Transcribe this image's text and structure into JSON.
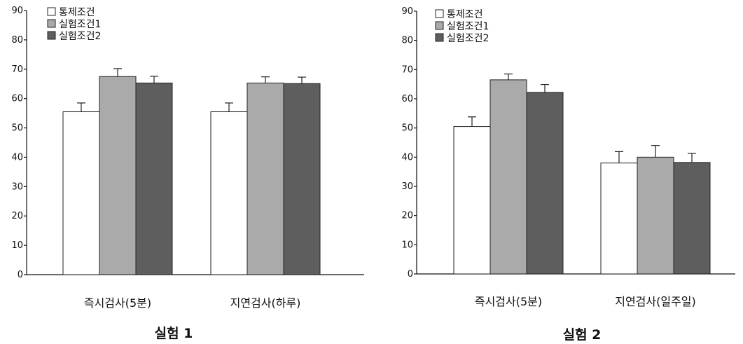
{
  "chart_data": [
    {
      "type": "bar",
      "caption": "실험 1",
      "categories": [
        "즉시검사(5분)",
        "지연검사(하루)"
      ],
      "series": [
        {
          "name": "통제조건",
          "values": [
            55.5,
            55.5
          ],
          "error": [
            3.0,
            3.0
          ],
          "color": "#ffffff"
        },
        {
          "name": "실험조건1",
          "values": [
            67.5,
            65.3
          ],
          "error": [
            2.7,
            2.1
          ],
          "color": "#aaaaaa"
        },
        {
          "name": "실험조건2",
          "values": [
            65.3,
            65.1
          ],
          "error": [
            2.3,
            2.2
          ],
          "color": "#5e5e5e"
        }
      ],
      "ylim": [
        0,
        90
      ],
      "yticks": [
        "0",
        "10",
        "20",
        "30",
        "40",
        "50",
        "60",
        "70",
        "80",
        "90"
      ],
      "legend_position": "top-left",
      "grid": false
    },
    {
      "type": "bar",
      "caption": "실험 2",
      "categories": [
        "즉시검사(5분)",
        "지연검사(일주일)"
      ],
      "series": [
        {
          "name": "통제조건",
          "values": [
            50.5,
            38.0
          ],
          "error": [
            3.3,
            3.9
          ],
          "color": "#ffffff"
        },
        {
          "name": "실험조건1",
          "values": [
            66.5,
            40.0
          ],
          "error": [
            2.0,
            4.0
          ],
          "color": "#aaaaaa"
        },
        {
          "name": "실험조건2",
          "values": [
            62.2,
            38.2
          ],
          "error": [
            2.7,
            3.1
          ],
          "color": "#5e5e5e"
        }
      ],
      "ylim": [
        0,
        90
      ],
      "yticks": [
        "0",
        "10",
        "20",
        "30",
        "40",
        "50",
        "60",
        "70",
        "80",
        "90"
      ],
      "legend_position": "top-left",
      "grid": false
    }
  ]
}
